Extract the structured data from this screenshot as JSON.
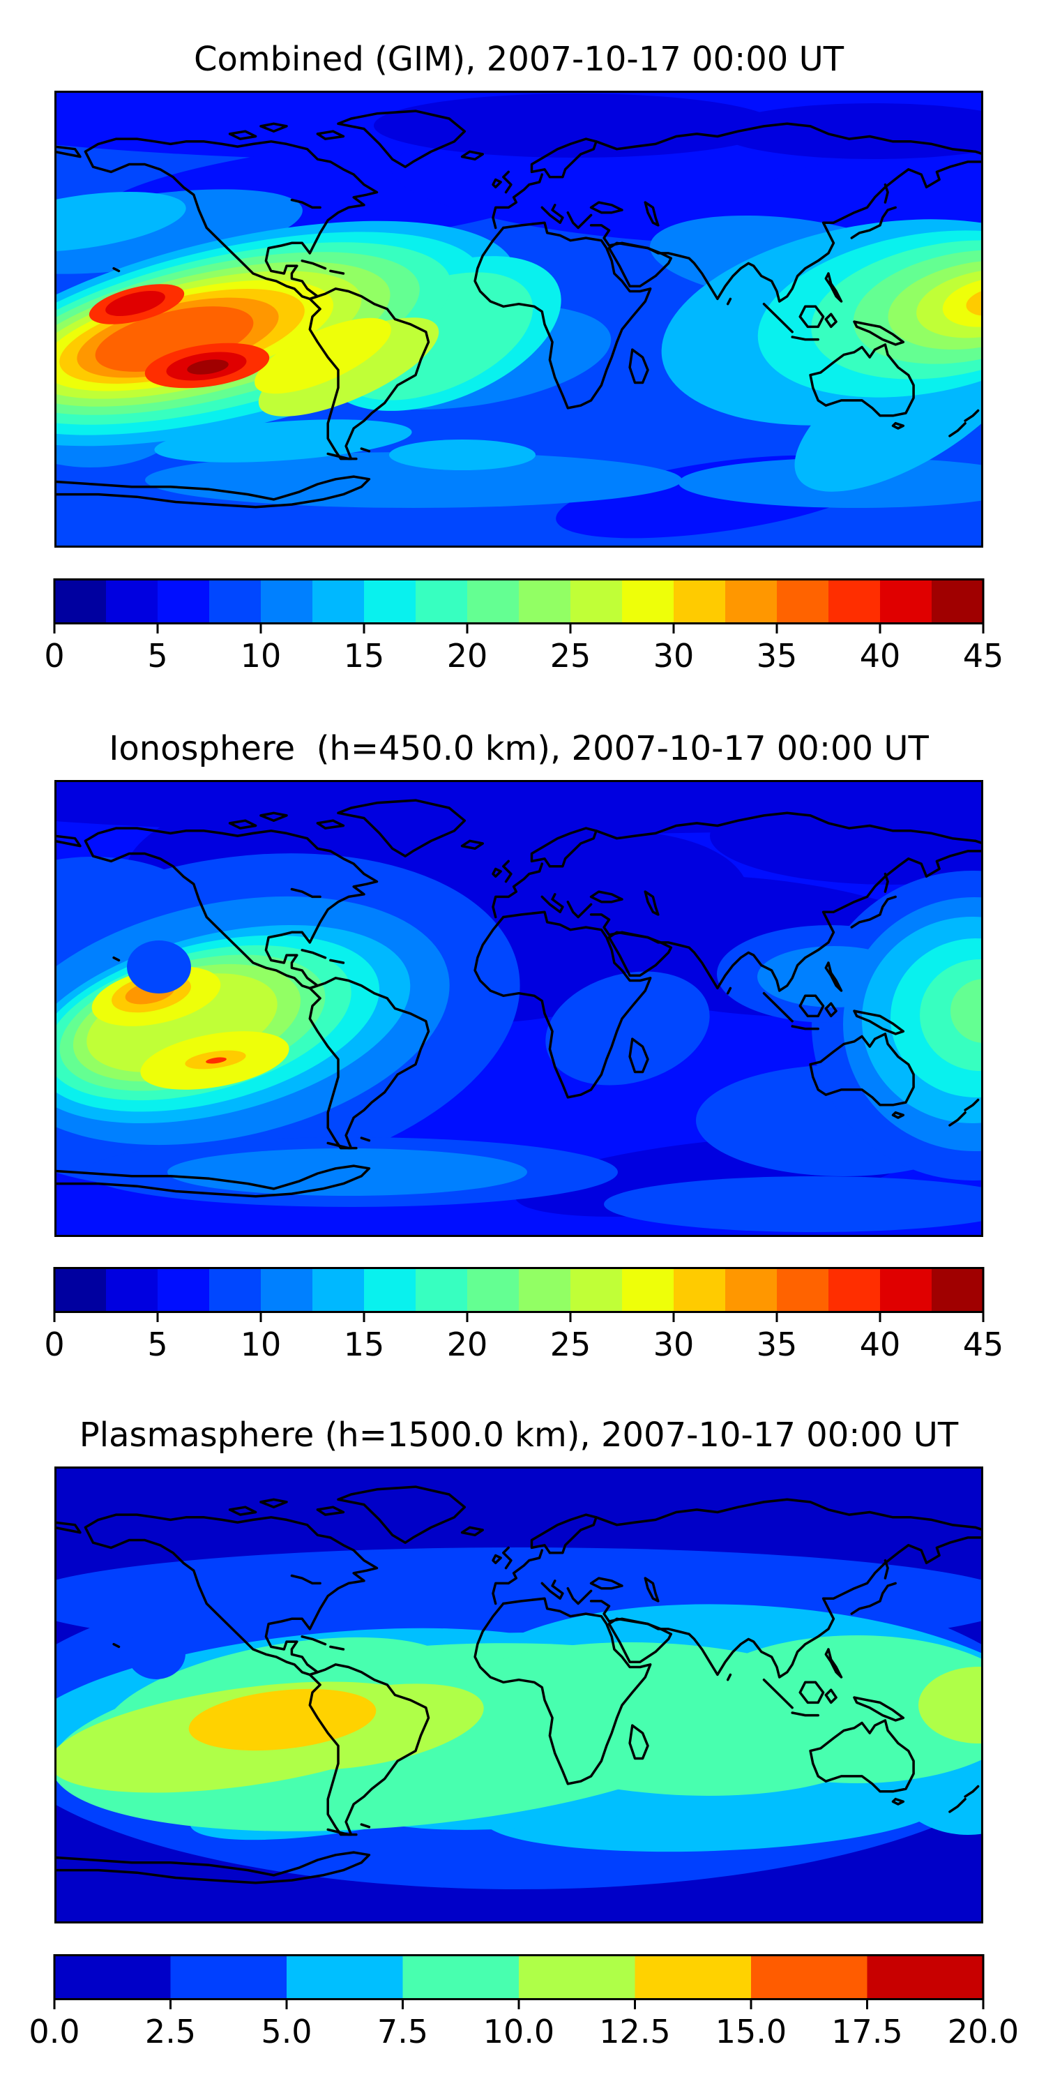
{
  "figure": {
    "background": "#FFFFFF",
    "text_color": "#000000",
    "coastline_color": "#000000",
    "colormap": "jet"
  },
  "panels": [
    {
      "id": "combined",
      "title": "Combined (GIM), 2007-10-17 00:00 UT",
      "colorbar": {
        "vmin": 0,
        "vmax": 45,
        "step": 2.5,
        "n_segments": 18,
        "tick_labels": [
          "0",
          "5",
          "10",
          "15",
          "20",
          "25",
          "30",
          "35",
          "40",
          "45"
        ],
        "segment_colors": [
          "#0000A0",
          "#0000E0",
          "#000EFF",
          "#0047FF",
          "#0080FF",
          "#00B8FF",
          "#09F1EE",
          "#37FFC0",
          "#64FF92",
          "#92FF64",
          "#C0FF37",
          "#EEFF09",
          "#FFCB00",
          "#FF9700",
          "#FF6300",
          "#FF2E00",
          "#E00000",
          "#A00000"
        ]
      }
    },
    {
      "id": "ionosphere",
      "title": "Ionosphere  (h=450.0 km), 2007-10-17 00:00 UT",
      "colorbar": {
        "vmin": 0,
        "vmax": 45,
        "step": 2.5,
        "n_segments": 18,
        "tick_labels": [
          "0",
          "5",
          "10",
          "15",
          "20",
          "25",
          "30",
          "35",
          "40",
          "45"
        ],
        "segment_colors": [
          "#0000A0",
          "#0000E0",
          "#000EFF",
          "#0047FF",
          "#0080FF",
          "#00B8FF",
          "#09F1EE",
          "#37FFC0",
          "#64FF92",
          "#92FF64",
          "#C0FF37",
          "#EEFF09",
          "#FFCB00",
          "#FF9700",
          "#FF6300",
          "#FF2E00",
          "#E00000",
          "#A00000"
        ]
      }
    },
    {
      "id": "plasmasphere",
      "title": "Plasmasphere (h=1500.0 km), 2007-10-17 00:00 UT",
      "colorbar": {
        "vmin": 0,
        "vmax": 20,
        "step": 2.5,
        "n_segments": 8,
        "tick_labels": [
          "0.0",
          "2.5",
          "5.0",
          "7.5",
          "10.0",
          "12.5",
          "15.0",
          "17.5",
          "20.0"
        ],
        "segment_colors": [
          "#0000C8",
          "#0040FF",
          "#00BFFF",
          "#48FFAF",
          "#AFFF48",
          "#FFD200",
          "#FF5C00",
          "#C80000"
        ]
      }
    }
  ],
  "chart_data": [
    {
      "type": "heatmap",
      "subtype": "filled-contour world map, equirectangular projection",
      "title": "Combined (GIM), 2007-10-17 00:00 UT",
      "lon_range": [
        -180,
        180
      ],
      "lat_range": [
        -90,
        90
      ],
      "colormap": "jet",
      "vmin": 0,
      "vmax": 45,
      "contour_interval": 2.5,
      "colorbar_ticks": [
        0,
        5,
        10,
        15,
        20,
        25,
        30,
        35,
        40,
        45
      ],
      "legend_position": "horizontal colorbar below map",
      "grid": false,
      "features": [
        {
          "name": "primary maximum",
          "region": "south-central Pacific west of South America",
          "lon": -128,
          "lat": -10,
          "value_range": [
            37.5,
            45
          ],
          "cores": [
            {
              "lon": -146,
              "lat": 3,
              "value_range": [
                40,
                42.5
              ]
            },
            {
              "lon": -121,
              "lat": -18,
              "value_range": [
                42.5,
                45
              ]
            }
          ]
        },
        {
          "name": "secondary maximum",
          "region": "western Pacific near the dateline",
          "lon": 178,
          "lat": 7,
          "value_range": [
            30,
            35
          ]
        },
        {
          "name": "enhanced halo",
          "region": "tropical eastern Pacific and northern South America",
          "value_range": [
            15,
            30
          ]
        },
        {
          "name": "background low/mid latitudes",
          "value_range": [
            5,
            15
          ]
        },
        {
          "name": "minima",
          "region": "polar caps and southern Indian Ocean",
          "value_range": [
            0,
            5
          ]
        }
      ]
    },
    {
      "type": "heatmap",
      "subtype": "filled-contour world map, equirectangular projection",
      "title": "Ionosphere  (h=450.0 km), 2007-10-17 00:00 UT",
      "lon_range": [
        -180,
        180
      ],
      "lat_range": [
        -90,
        90
      ],
      "colormap": "jet",
      "vmin": 0,
      "vmax": 45,
      "contour_interval": 2.5,
      "colorbar_ticks": [
        0,
        5,
        10,
        15,
        20,
        25,
        30,
        35,
        40,
        45
      ],
      "legend_position": "horizontal colorbar below map",
      "grid": false,
      "features": [
        {
          "name": "primary maximum",
          "region": "central Pacific",
          "lon": -141,
          "lat": 8,
          "value_range": [
            32.5,
            37.5
          ]
        },
        {
          "name": "secondary lobe",
          "region": "south Pacific",
          "lon": -120,
          "lat": -18,
          "value_range": [
            30,
            35
          ],
          "note": "tiny 37.5-40 sliver inside"
        },
        {
          "name": "western Pacific enhancement",
          "lon": 178,
          "lat": -6,
          "value_range": [
            15,
            22.5
          ]
        },
        {
          "name": "background",
          "region": "most of globe",
          "value_range": [
            2.5,
            10
          ]
        }
      ]
    },
    {
      "type": "heatmap",
      "subtype": "filled-contour world map, equirectangular projection",
      "title": "Plasmasphere (h=1500.0 km), 2007-10-17 00:00 UT",
      "lon_range": [
        -180,
        180
      ],
      "lat_range": [
        -90,
        90
      ],
      "colormap": "jet",
      "vmin": 0,
      "vmax": 20,
      "contour_interval": 2.5,
      "colorbar_ticks": [
        0,
        2.5,
        5,
        7.5,
        10,
        12.5,
        15,
        17.5,
        20
      ],
      "legend_position": "horizontal colorbar below map",
      "grid": false,
      "features": [
        {
          "name": "equatorial band",
          "region": "all longitudes within about +/-25 deg latitude",
          "value_range": [
            7.5,
            12.5
          ]
        },
        {
          "name": "peak",
          "region": "north-western South America / eastern Pacific",
          "lon": -92,
          "lat": -10,
          "value_range": [
            12.5,
            15
          ]
        },
        {
          "name": "secondary maximum",
          "region": "western Pacific near map edge",
          "lon": 176,
          "lat": -4,
          "value_range": [
            10,
            12.5
          ]
        },
        {
          "name": "local minimum spot",
          "region": "north-east of Hawaii",
          "lon": -141,
          "lat": 16,
          "value_range": [
            2.5,
            5
          ]
        },
        {
          "name": "polar minima",
          "value_range": [
            0,
            2.5
          ]
        }
      ]
    }
  ]
}
